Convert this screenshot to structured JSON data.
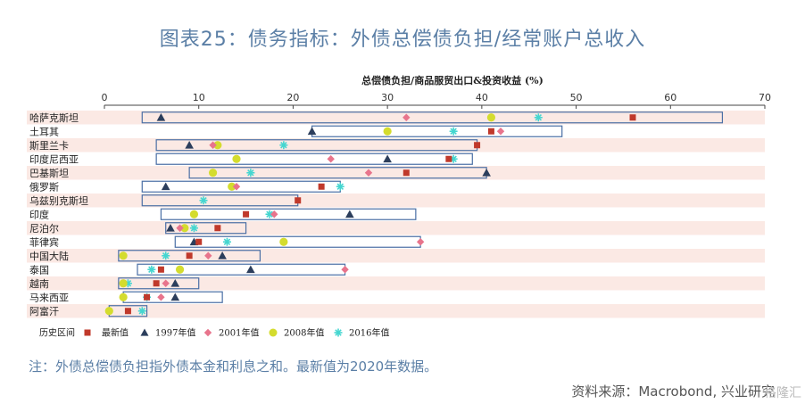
{
  "title": "图表25：债务指标：外债总偿债负担/经常账户总收入",
  "note": "注：外债总偿债负担指外债本金和利息之和。最新值为2020年数据。",
  "source": "资料来源：Macrobond, 兴业研究",
  "watermark": "格隆汇",
  "colors": {
    "latest": "#c0392b",
    "y1997": "#2c3e5c",
    "y2001": "#e8748c",
    "y2008": "#d4dc2e",
    "y2016": "#45d6d0",
    "range_box": "#4a6fa5",
    "stripe": "#fbe9e4"
  },
  "chart_data": {
    "type": "range-dot",
    "xlabel": "总偿债负担/商品服贸出口&投资收益 (%)",
    "xlim": [
      0,
      70
    ],
    "xticks": [
      0,
      10,
      20,
      30,
      40,
      50,
      60,
      70
    ],
    "legend": [
      "历史区间",
      "最新值",
      "1997年值",
      "2001年值",
      "2008年值",
      "2016年值"
    ],
    "legend_position": "bottom",
    "rows": [
      {
        "country": "哈萨克斯坦",
        "range": [
          4,
          65.5
        ],
        "latest": 56,
        "y1997": 6,
        "y2001": 32,
        "y2008": 41,
        "y2016": 46
      },
      {
        "country": "土耳其",
        "range": [
          22,
          48.5
        ],
        "latest": 41,
        "y1997": 22,
        "y2001": 42,
        "y2008": 30,
        "y2016": 37
      },
      {
        "country": "斯里兰卡",
        "range": [
          5.5,
          39.5
        ],
        "latest": 39.5,
        "y1997": 9,
        "y2001": 11.5,
        "y2008": 12,
        "y2016": 19
      },
      {
        "country": "印度尼西亚",
        "range": [
          5.5,
          39
        ],
        "latest": 36.5,
        "y1997": 30,
        "y2001": 24,
        "y2008": 14,
        "y2016": 37
      },
      {
        "country": "巴基斯坦",
        "range": [
          9,
          40.5
        ],
        "latest": 32,
        "y1997": 40.5,
        "y2001": 28,
        "y2008": 11.5,
        "y2016": 15.5
      },
      {
        "country": "俄罗斯",
        "range": [
          4,
          25
        ],
        "latest": 23,
        "y1997": 6.5,
        "y2001": 14,
        "y2008": 13.5,
        "y2016": 25
      },
      {
        "country": "乌兹别克斯坦",
        "range": [
          4,
          20.5
        ],
        "latest": 20.5,
        "y1997": null,
        "y2001": null,
        "y2008": null,
        "y2016": 10.5
      },
      {
        "country": "印度",
        "range": [
          6,
          33
        ],
        "latest": 15,
        "y1997": 26,
        "y2001": 18,
        "y2008": 9.5,
        "y2016": 17.5
      },
      {
        "country": "尼泊尔",
        "range": [
          6.5,
          15
        ],
        "latest": 12,
        "y1997": 7,
        "y2001": 8,
        "y2008": 8.5,
        "y2016": 9.5
      },
      {
        "country": "菲律宾",
        "range": [
          7.5,
          33.5
        ],
        "latest": 10,
        "y1997": 9.5,
        "y2001": 33.5,
        "y2008": 19,
        "y2016": 13
      },
      {
        "country": "中国大陆",
        "range": [
          1.5,
          16.5
        ],
        "latest": 9,
        "y1997": 12.5,
        "y2001": 11,
        "y2008": 2,
        "y2016": 6.5
      },
      {
        "country": "泰国",
        "range": [
          3.5,
          25.5
        ],
        "latest": 6,
        "y1997": 15.5,
        "y2001": 25.5,
        "y2008": 8,
        "y2016": 5
      },
      {
        "country": "越南",
        "range": [
          1.5,
          10
        ],
        "latest": 5.5,
        "y1997": 7.5,
        "y2001": 6.5,
        "y2008": 2,
        "y2016": 2.5
      },
      {
        "country": "马来西亚",
        "range": [
          2,
          12.5
        ],
        "latest": 4.5,
        "y1997": 7.5,
        "y2001": 6,
        "y2008": 2,
        "y2016": 4.5
      },
      {
        "country": "阿富汗",
        "range": [
          0.5,
          4.5
        ],
        "latest": 2.5,
        "y1997": null,
        "y2001": null,
        "y2008": 0.5,
        "y2016": 4
      }
    ]
  }
}
